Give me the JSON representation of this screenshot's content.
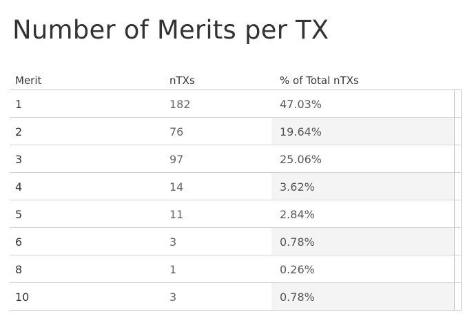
{
  "title": "Number of Merits per TX",
  "columns": {
    "merit": "Merit",
    "ntxs": "nTXs",
    "pct": "% of Total nTXs"
  },
  "rows": [
    {
      "merit": "1",
      "ntxs": "182",
      "pct": "47.03%"
    },
    {
      "merit": "2",
      "ntxs": "76",
      "pct": "19.64%"
    },
    {
      "merit": "3",
      "ntxs": "97",
      "pct": "25.06%"
    },
    {
      "merit": "4",
      "ntxs": "14",
      "pct": "3.62%"
    },
    {
      "merit": "5",
      "ntxs": "11",
      "pct": "2.84%"
    },
    {
      "merit": "6",
      "ntxs": "3",
      "pct": "0.78%"
    },
    {
      "merit": "8",
      "ntxs": "1",
      "pct": "0.26%"
    },
    {
      "merit": "10",
      "ntxs": "3",
      "pct": "0.78%"
    }
  ],
  "colors": {
    "text": "#333333",
    "grid": "#c8c8c8",
    "shade": "#f4f4f4"
  }
}
